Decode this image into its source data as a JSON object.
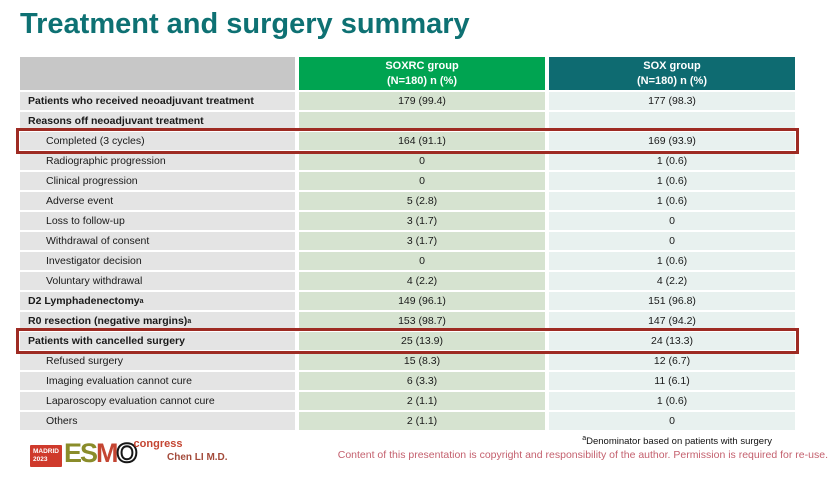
{
  "slide": {
    "title": "Treatment and surgery summary",
    "author": "Chen LI M.D.",
    "footnote_sup": "a",
    "footnote": "Denominator based on patients with surgery",
    "copyright": "Content of this presentation is copyright and responsibility of the author.  Permission is required for re-use."
  },
  "logo": {
    "city": "MADRID",
    "year": "2023",
    "letters": [
      "E",
      "S",
      "M",
      "O"
    ],
    "congress": "congress"
  },
  "colors": {
    "title_teal": "#0e7173",
    "header_green": "#00a451",
    "header_teal": "#0e6b71",
    "cell_green": "#d6e3d0",
    "cell_teal": "#e8f1ef",
    "label_gray": "#e4e4e4",
    "corner_gray": "#c7c7c7",
    "box_red": "#9e2b23",
    "author_red": "#a34a3a",
    "copyright_rose": "#c4606e",
    "logo_red": "#cf3a2c",
    "logo_olive": "#8a8c2a",
    "logo_m_red": "#c44532"
  },
  "table": {
    "columns": [
      {
        "name": "",
        "sub": ""
      },
      {
        "name": "SOXRC group",
        "sub": "(N=180)  n (%)"
      },
      {
        "name": "SOX group",
        "sub": "(N=180)  n (%)"
      }
    ],
    "rows": [
      {
        "label": "Patients who received neoadjuvant treatment",
        "sup": "",
        "bold": true,
        "indent": false,
        "highlight": false,
        "soxrc": "179 (99.4)",
        "sox": "177 (98.3)"
      },
      {
        "label": "Reasons off neoadjuvant treatment",
        "sup": "",
        "bold": true,
        "indent": false,
        "highlight": false,
        "soxrc": "",
        "sox": ""
      },
      {
        "label": "Completed (3 cycles)",
        "sup": "",
        "bold": false,
        "indent": true,
        "highlight": true,
        "soxrc": "164 (91.1)",
        "sox": "169 (93.9)"
      },
      {
        "label": "Radiographic progression",
        "sup": "",
        "bold": false,
        "indent": true,
        "highlight": false,
        "soxrc": "0",
        "sox": "1 (0.6)"
      },
      {
        "label": "Clinical progression",
        "sup": "",
        "bold": false,
        "indent": true,
        "highlight": false,
        "soxrc": "0",
        "sox": "1 (0.6)"
      },
      {
        "label": "Adverse event",
        "sup": "",
        "bold": false,
        "indent": true,
        "highlight": false,
        "soxrc": "5 (2.8)",
        "sox": "1 (0.6)"
      },
      {
        "label": "Loss to follow-up",
        "sup": "",
        "bold": false,
        "indent": true,
        "highlight": false,
        "soxrc": "3 (1.7)",
        "sox": "0"
      },
      {
        "label": "Withdrawal of consent",
        "sup": "",
        "bold": false,
        "indent": true,
        "highlight": false,
        "soxrc": "3 (1.7)",
        "sox": "0"
      },
      {
        "label": "Investigator decision",
        "sup": "",
        "bold": false,
        "indent": true,
        "highlight": false,
        "soxrc": "0",
        "sox": "1 (0.6)"
      },
      {
        "label": "Voluntary withdrawal",
        "sup": "",
        "bold": false,
        "indent": true,
        "highlight": false,
        "soxrc": "4 (2.2)",
        "sox": "4 (2.2)"
      },
      {
        "label": "D2 Lymphadenectomy",
        "sup": "a",
        "bold": true,
        "indent": false,
        "highlight": false,
        "soxrc": "149 (96.1)",
        "sox": "151 (96.8)"
      },
      {
        "label": "R0 resection (negative margins)",
        "sup": "a",
        "bold": true,
        "indent": false,
        "highlight": false,
        "soxrc": "153 (98.7)",
        "sox": "147 (94.2)"
      },
      {
        "label": "Patients with cancelled surgery",
        "sup": "",
        "bold": true,
        "indent": false,
        "highlight": true,
        "soxrc": "25 (13.9)",
        "sox": "24 (13.3)"
      },
      {
        "label": "Refused surgery",
        "sup": "",
        "bold": false,
        "indent": true,
        "highlight": false,
        "soxrc": "15 (8.3)",
        "sox": "12 (6.7)"
      },
      {
        "label": "Imaging evaluation cannot cure",
        "sup": "",
        "bold": false,
        "indent": true,
        "highlight": false,
        "soxrc": "6 (3.3)",
        "sox": "11 (6.1)"
      },
      {
        "label": "Laparoscopy evaluation cannot cure",
        "sup": "",
        "bold": false,
        "indent": true,
        "highlight": false,
        "soxrc": "2 (1.1)",
        "sox": "1 (0.6)"
      },
      {
        "label": "Others",
        "sup": "",
        "bold": false,
        "indent": true,
        "highlight": false,
        "soxrc": "2 (1.1)",
        "sox": "0"
      }
    ]
  }
}
